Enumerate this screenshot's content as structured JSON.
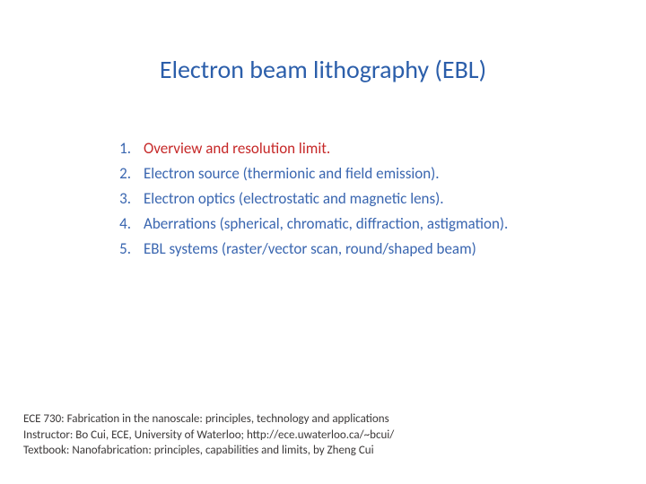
{
  "title": "Electron beam lithography (EBL)",
  "title_color": "#2b5eaa",
  "title_fontsize": 28,
  "list_color": "#3a66b0",
  "highlight_color": "#c62828",
  "list_fontsize": 17,
  "items": [
    {
      "num": "1.",
      "text": "Overview and resolution limit.",
      "highlight": true
    },
    {
      "num": "2.",
      "text": "Electron source (thermionic and field emission).",
      "highlight": false
    },
    {
      "num": "3.",
      "text": "Electron optics (electrostatic and magnetic lens).",
      "highlight": false
    },
    {
      "num": "4.",
      "text": "Aberrations (spherical, chromatic, diffraction, astigmation).",
      "highlight": false
    },
    {
      "num": "5.",
      "text": "EBL systems (raster/vector scan, round/shaped beam)",
      "highlight": false
    }
  ],
  "footer": {
    "line1": "ECE 730: Fabrication in the nanoscale: principles, technology and applications",
    "line2": "Instructor: Bo Cui, ECE, University of Waterloo; http://ece.uwaterloo.ca/~bcui/",
    "line3": "Textbook: Nanofabrication: principles, capabilities and limits, by Zheng Cui"
  },
  "footer_color": "#3b3838",
  "footer_fontsize": 13,
  "background_color": "#ffffff"
}
